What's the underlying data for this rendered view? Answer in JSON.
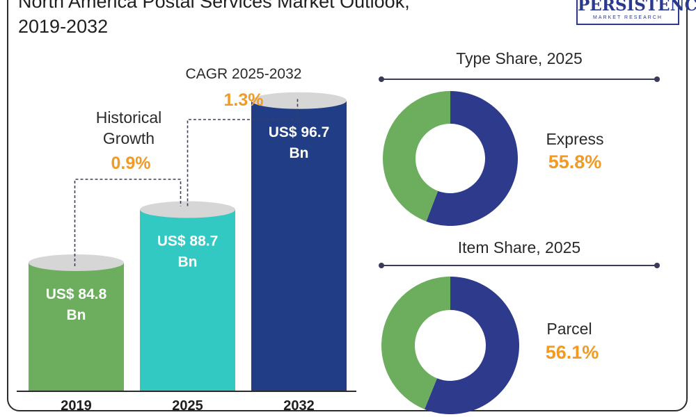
{
  "header": {
    "title_line1": "North America Postal Services Market Outlook,",
    "title_line2": "2019-2032"
  },
  "logo": {
    "brand": "PERSISTENCE",
    "tagline": "MARKET RESEARCH"
  },
  "colors": {
    "bar_2019": "#6cae5e",
    "bar_2025": "#33c9c3",
    "bar_2032": "#213d85",
    "donut_major": "#2e3a8c",
    "donut_minor": "#6cae5e",
    "accent": "#f29a22",
    "cap": "#d6d6d6"
  },
  "chart_data": [
    {
      "type": "bar",
      "categories": [
        "2019",
        "2025",
        "2032"
      ],
      "values": [
        84.8,
        88.7,
        96.7
      ],
      "value_labels": [
        "US$ 84.8 Bn",
        "US$ 88.7 Bn",
        "US$ 96.7 Bn"
      ],
      "unit": "US$ Bn",
      "annotations": [
        {
          "label_lines": [
            "Historical",
            "Growth"
          ],
          "value": "0.9%",
          "from": "2019",
          "to": "2025"
        },
        {
          "label_lines": [
            "CAGR 2025-2032"
          ],
          "value": "1.3%",
          "from": "2025",
          "to": "2032"
        }
      ]
    },
    {
      "type": "pie",
      "title": "Type Share, 2025",
      "highlight_label": "Express",
      "highlight_value": "55.8%",
      "values": [
        55.8,
        44.2
      ]
    },
    {
      "type": "pie",
      "title": "Item Share, 2025",
      "highlight_label": "Parcel",
      "highlight_value": "56.1%",
      "values": [
        56.1,
        43.9
      ]
    }
  ]
}
